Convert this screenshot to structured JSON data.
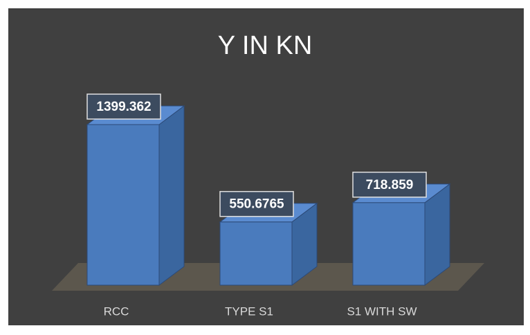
{
  "chart_data": {
    "type": "bar3d",
    "title": "Y IN KN",
    "categories": [
      "RCC",
      "TYPE S1",
      "S1 WITH SW"
    ],
    "values": [
      1399.362,
      550.6765,
      718.859
    ],
    "color": "#4a7bbd"
  }
}
